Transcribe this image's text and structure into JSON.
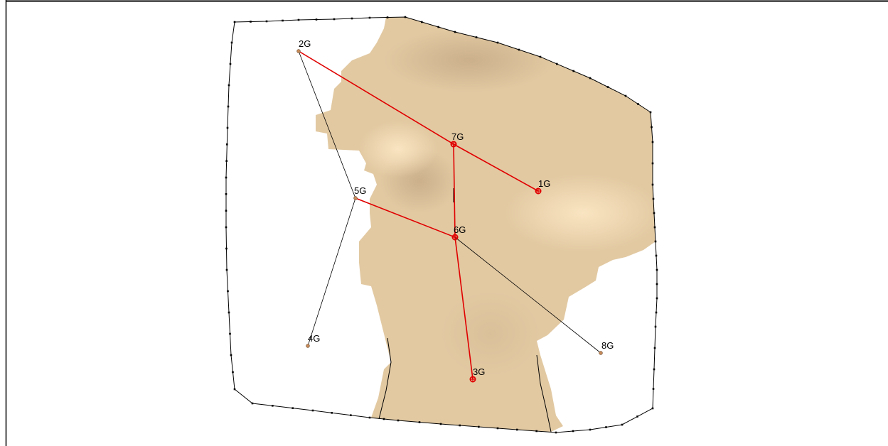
{
  "colors": {
    "boundary": "#000000",
    "terrain": "#e2c9a2",
    "terrain_shadow": "#c8ad87",
    "terrain_highlight": "#f8e2bd",
    "active_link": "#e00000",
    "inactive_link": "#000000",
    "inactive_node": "#c78b5a",
    "active_node": "#e00000"
  },
  "nodes": [
    {
      "id": "1G",
      "label": "1G",
      "active": true
    },
    {
      "id": "2G",
      "label": "2G",
      "active": false
    },
    {
      "id": "3G",
      "label": "3G",
      "active": true
    },
    {
      "id": "4G",
      "label": "4G",
      "active": false
    },
    {
      "id": "5G",
      "label": "5G",
      "active": false
    },
    {
      "id": "6G",
      "label": "6G",
      "active": true
    },
    {
      "id": "7G",
      "label": "7G",
      "active": true
    },
    {
      "id": "8G",
      "label": "8G",
      "active": false
    }
  ],
  "links": [
    {
      "from": "2G",
      "to": "7G",
      "active": true
    },
    {
      "from": "7G",
      "to": "1G",
      "active": true
    },
    {
      "from": "7G",
      "to": "6G",
      "active": true
    },
    {
      "from": "5G",
      "to": "6G",
      "active": true
    },
    {
      "from": "6G",
      "to": "3G",
      "active": true
    },
    {
      "from": "6G",
      "to": "8G",
      "active": false
    },
    {
      "from": "2G",
      "to": "5G",
      "active": false
    },
    {
      "from": "5G",
      "to": "4G",
      "active": false
    }
  ]
}
